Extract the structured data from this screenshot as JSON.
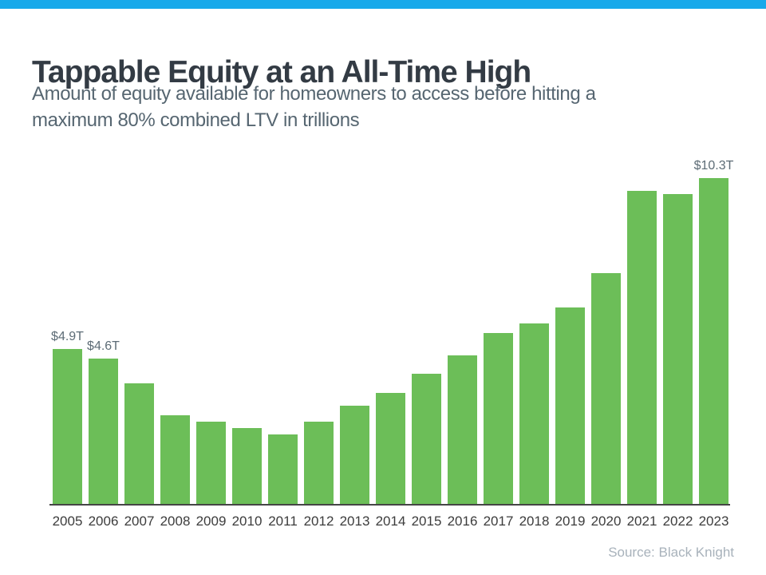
{
  "page": {
    "top_bar_color": "#18A9EA",
    "background_color": "#FFFFFF"
  },
  "header": {
    "title": "Tappable Equity at an All-Time High",
    "subtitle": "Amount of equity available for homeowners to access before hitting a\nmaximum 80% combined LTV in trillions"
  },
  "chart_data": {
    "type": "bar",
    "title": "Tappable Equity at an All-Time High",
    "subtitle": "Amount of equity available for homeowners to access before hitting a maximum 80% combined LTV in trillions",
    "unit": "trillions of dollars",
    "categories": [
      "2005",
      "2006",
      "2007",
      "2008",
      "2009",
      "2010",
      "2011",
      "2012",
      "2013",
      "2014",
      "2015",
      "2016",
      "2017",
      "2018",
      "2019",
      "2020",
      "2021",
      "2022",
      "2023"
    ],
    "values": [
      4.9,
      4.6,
      3.8,
      2.8,
      2.6,
      2.4,
      2.2,
      2.6,
      3.1,
      3.5,
      4.1,
      4.7,
      5.4,
      5.7,
      6.2,
      7.3,
      9.9,
      9.8,
      10.3
    ],
    "data_labels": {
      "2005": "$4.9T",
      "2006": "$4.6T",
      "2023": "$10.3T"
    },
    "bar_color": "#6CBE58",
    "axis_color": "#454545",
    "tick_label_color": "#3C3C3C",
    "data_label_color": "#5D6C76",
    "xlabel": "",
    "ylabel": "",
    "ylim": [
      0,
      11
    ],
    "grid": false,
    "legend": false
  },
  "footer": {
    "source": "Source: Black Knight"
  }
}
